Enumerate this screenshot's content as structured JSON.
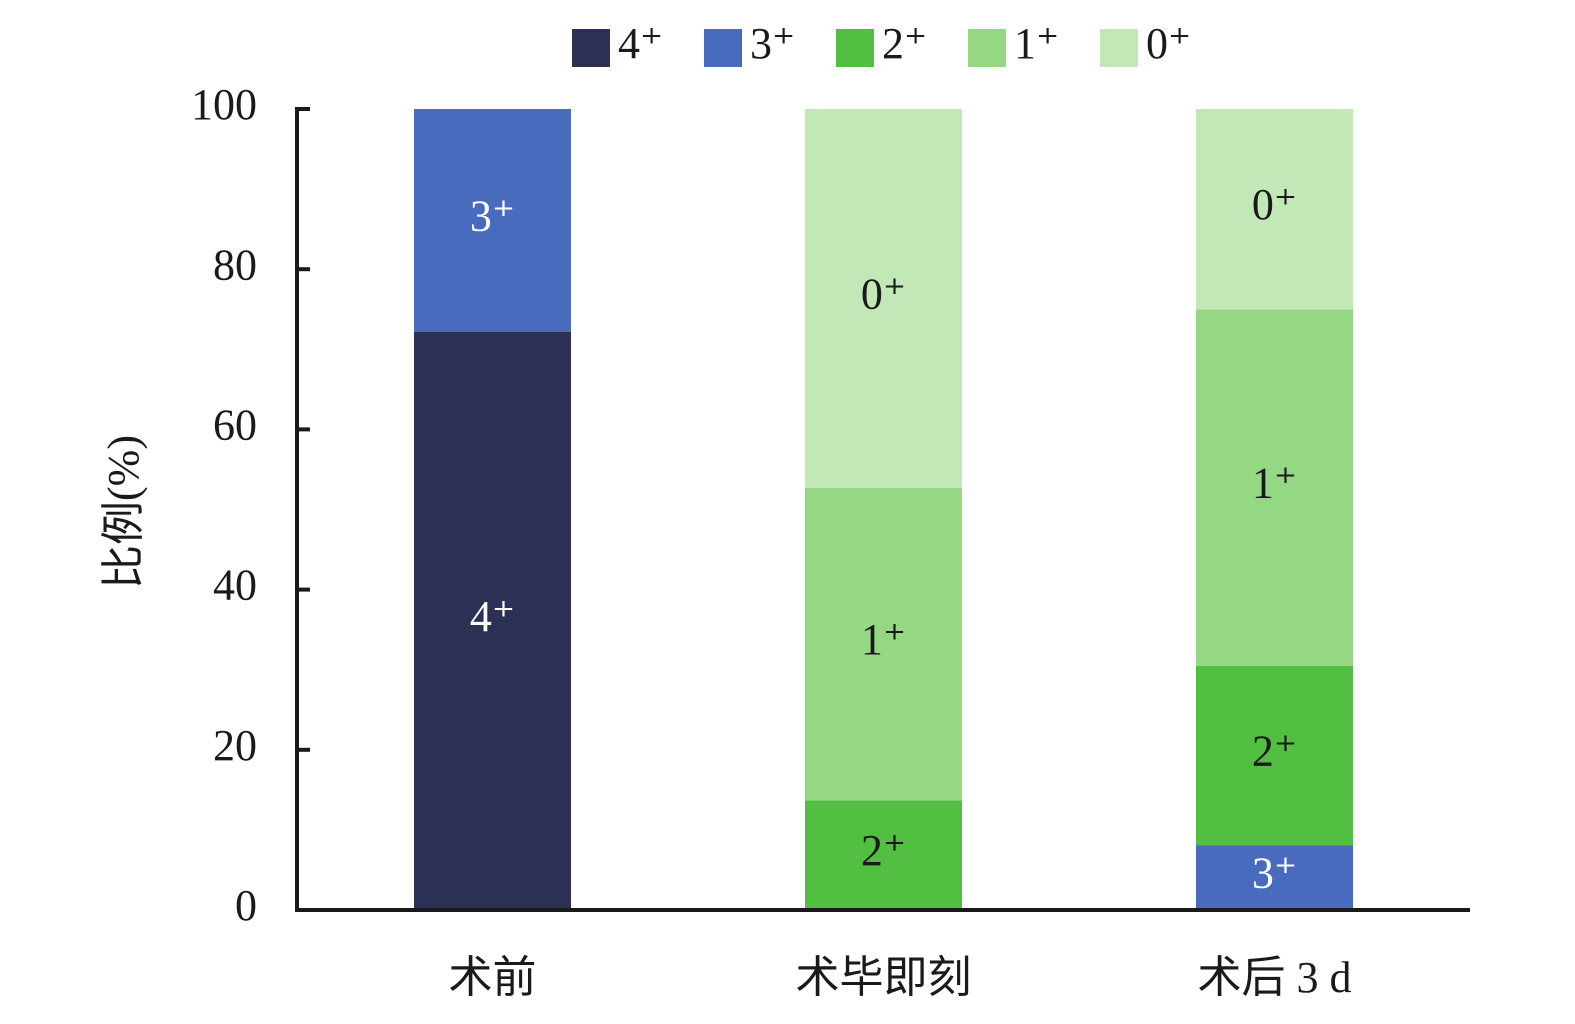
{
  "chart_data": {
    "type": "stacked_bar",
    "y_label": "比例(%)",
    "categories": [
      "术前",
      "术毕即刻",
      "术后 3 d"
    ],
    "series": [
      {
        "name": "4⁺",
        "color": "#2d3055",
        "label_color": "#ffffff",
        "values": [
          72.2,
          0,
          0
        ]
      },
      {
        "name": "3⁺",
        "color": "#486bbd",
        "label_color": "#ffffff",
        "values": [
          27.8,
          0,
          8.1
        ]
      },
      {
        "name": "2⁺",
        "color": "#52bf42",
        "label_color": "#1a1a1a",
        "values": [
          0,
          13.7,
          22.4
        ]
      },
      {
        "name": "1⁺",
        "color": "#95d884",
        "label_color": "#1a1a1a",
        "values": [
          0,
          39.0,
          44.5
        ]
      },
      {
        "name": "0⁺",
        "color": "#c3e8b7",
        "label_color": "#1a1a1a",
        "values": [
          0,
          47.3,
          25.0
        ]
      }
    ],
    "ylim": [
      0,
      100
    ],
    "yticks": [
      0,
      20,
      40,
      60,
      80,
      100
    ]
  }
}
